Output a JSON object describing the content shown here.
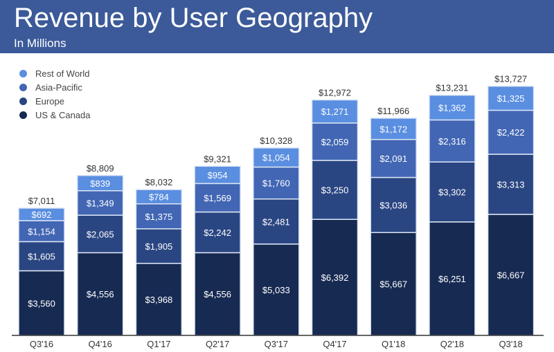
{
  "chart_data": {
    "type": "bar",
    "stacked": true,
    "title": "Revenue by User Geography",
    "subtitle": "In Millions",
    "categories": [
      "Q3'16",
      "Q4'16",
      "Q1'17",
      "Q2'17",
      "Q3'17",
      "Q4'17",
      "Q1'18",
      "Q2'18",
      "Q3'18"
    ],
    "series": [
      {
        "name": "US & Canada",
        "color": "#172a52",
        "values": [
          3560,
          4556,
          3968,
          4556,
          5033,
          6392,
          5667,
          6251,
          6667
        ]
      },
      {
        "name": "Europe",
        "color": "#2a4682",
        "values": [
          1605,
          2065,
          1905,
          2242,
          2481,
          3250,
          3036,
          3302,
          3313
        ]
      },
      {
        "name": "Asia-Pacific",
        "color": "#4266b4",
        "values": [
          1154,
          1349,
          1375,
          1569,
          1760,
          2059,
          2091,
          2316,
          2422
        ]
      },
      {
        "name": "Rest of World",
        "color": "#5a8ee0",
        "values": [
          692,
          839,
          784,
          954,
          1054,
          1271,
          1172,
          1362,
          1325
        ]
      }
    ],
    "totals": [
      7011,
      8809,
      8032,
      9321,
      10328,
      12972,
      11966,
      13231,
      13727
    ],
    "legend_position": "top-left",
    "grid": false
  },
  "colors": {
    "header": "#3c5a99"
  }
}
